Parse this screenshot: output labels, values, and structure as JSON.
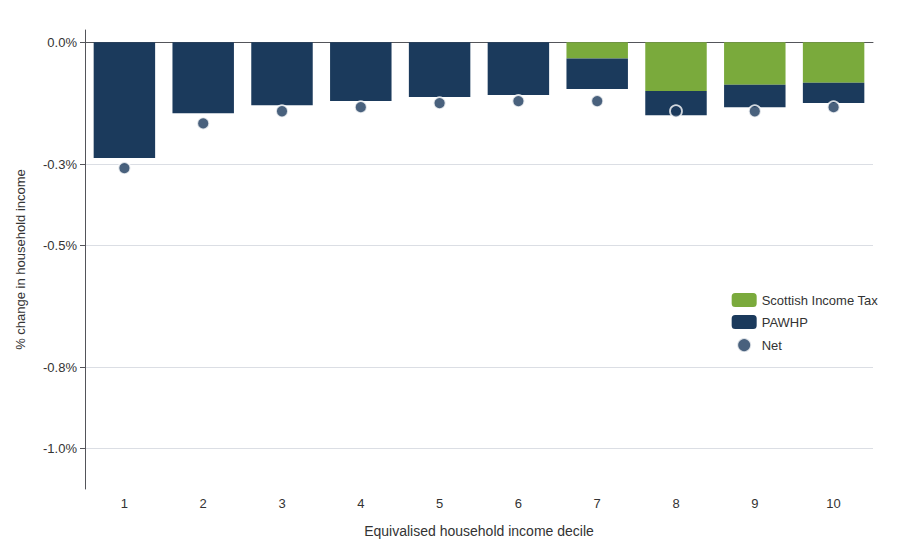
{
  "chart_data": {
    "type": "bar",
    "stacked": true,
    "xlabel": "Equivalised household income decile",
    "ylabel": "% change in household income",
    "categories": [
      1,
      2,
      3,
      4,
      5,
      6,
      7,
      8,
      9,
      10
    ],
    "series": [
      {
        "name": "Scottish Income Tax",
        "color": "#7aaa3c",
        "values": [
          0.0,
          0.0,
          0.0,
          0.0,
          0.0,
          0.0,
          -0.04,
          -0.12,
          -0.105,
          -0.1
        ]
      },
      {
        "name": "PAWHP",
        "color": "#1b3a5c",
        "values": [
          -0.285,
          -0.175,
          -0.155,
          -0.145,
          -0.135,
          -0.13,
          -0.075,
          -0.06,
          -0.055,
          -0.05
        ]
      },
      {
        "name": "Net",
        "type": "scatter",
        "marker": "circle",
        "color": "#1b3a5c",
        "values": [
          -0.31,
          -0.2,
          -0.17,
          -0.16,
          -0.15,
          -0.145,
          -0.145,
          -0.17,
          -0.17,
          -0.16
        ]
      }
    ],
    "ylim": [
      -1.1,
      0.03
    ],
    "yticks": [
      {
        "value": 0.0,
        "label": "0.0%"
      },
      {
        "value": -0.3,
        "label": "-0.3%"
      },
      {
        "value": -0.5,
        "label": "-0.5%"
      },
      {
        "value": -0.8,
        "label": "-0.8%"
      },
      {
        "value": -1.0,
        "label": "-1.0%"
      }
    ],
    "grid": true,
    "legend": "right"
  }
}
